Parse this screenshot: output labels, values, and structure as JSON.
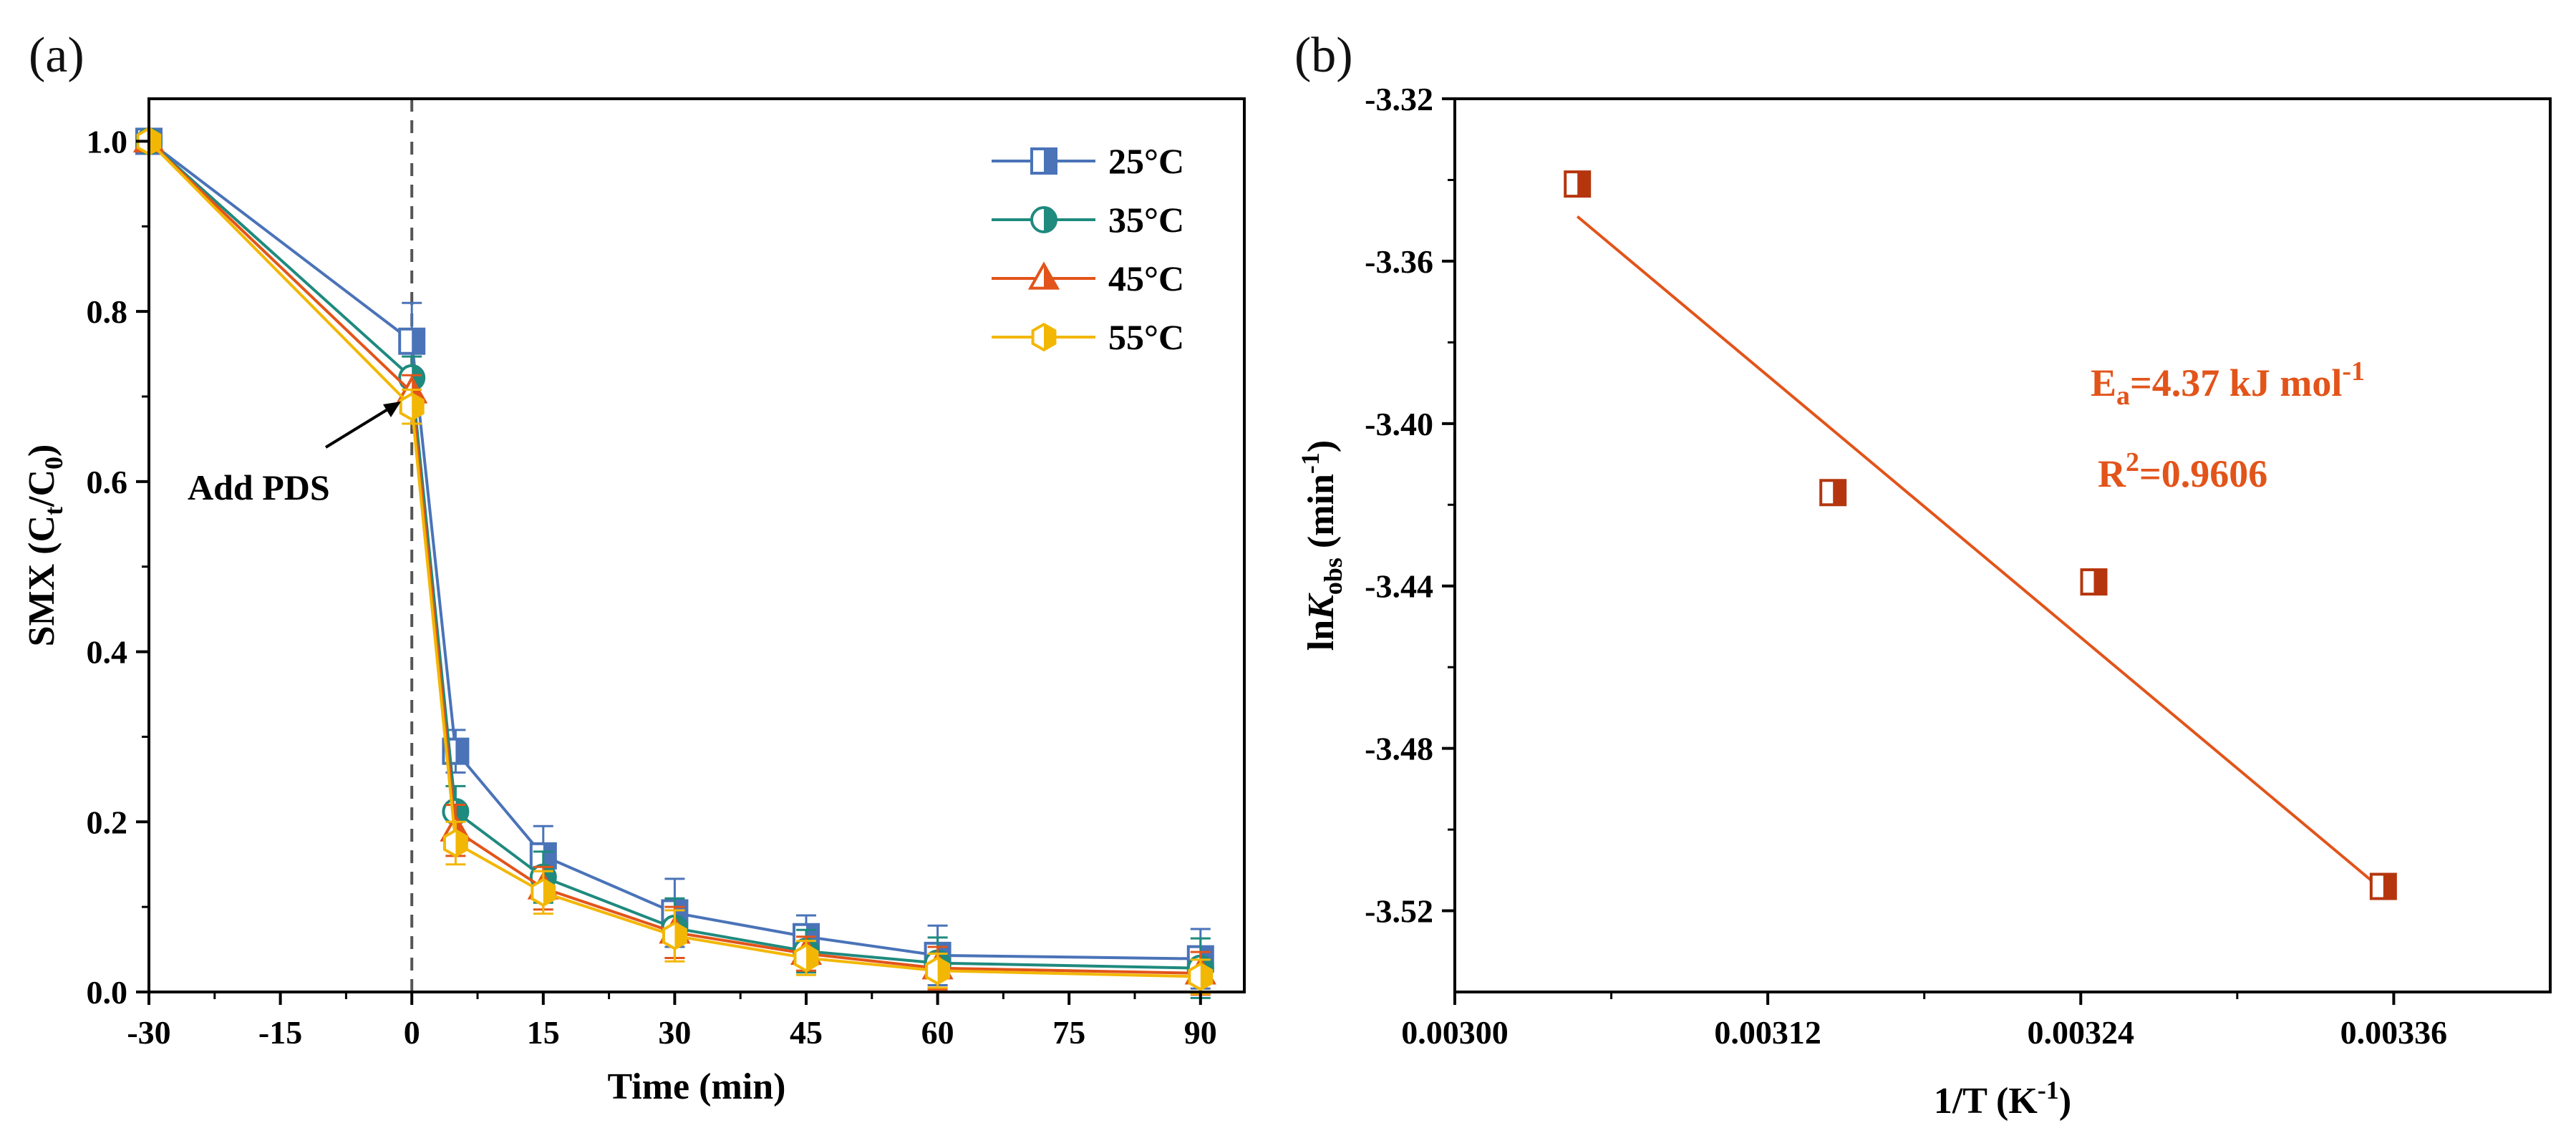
{
  "chart_data": [
    {
      "panel_label": "(a)",
      "type": "line",
      "xlabel": "Time (min)",
      "ylabel_parts": {
        "a": "SMX (C",
        "b": "t",
        "c": "/C",
        "d": "0",
        "e": ")"
      },
      "xlim": [
        -30,
        95
      ],
      "ylim": [
        0,
        1.05
      ],
      "xticks": [
        -30,
        -15,
        0,
        15,
        30,
        45,
        60,
        75,
        90
      ],
      "xtick_labels": [
        "-30",
        "-15",
        "0",
        "15",
        "30",
        "45",
        "60",
        "75",
        "90"
      ],
      "yticks": [
        0,
        0.2,
        0.4,
        0.6,
        0.8,
        1.0
      ],
      "ytick_labels": [
        "0.0",
        "0.2",
        "0.4",
        "0.6",
        "0.8",
        "1.0"
      ],
      "vline_x": 0,
      "annotation": "Add PDS",
      "annotation_target": [
        0,
        0.7
      ],
      "legend_position": "top-right",
      "x": [
        -30,
        0,
        5,
        15,
        30,
        45,
        60,
        90
      ],
      "series": [
        {
          "name": "25°C",
          "color": "#4a73b8",
          "marker": "square",
          "values": [
            1.0,
            0.765,
            0.283,
            0.16,
            0.093,
            0.065,
            0.043,
            0.039
          ],
          "errors": [
            0,
            0.045,
            0.025,
            0.035,
            0.04,
            0.025,
            0.035,
            0.035
          ]
        },
        {
          "name": "35°C",
          "color": "#1f8a7e",
          "marker": "circle",
          "values": [
            1.0,
            0.722,
            0.212,
            0.135,
            0.075,
            0.048,
            0.034,
            0.028
          ],
          "errors": [
            0,
            0.025,
            0.03,
            0.03,
            0.035,
            0.025,
            0.03,
            0.035
          ]
        },
        {
          "name": "45°C",
          "color": "#e2541a",
          "marker": "triangle",
          "values": [
            1.0,
            0.705,
            0.19,
            0.122,
            0.07,
            0.045,
            0.028,
            0.022
          ],
          "errors": [
            0,
            0.02,
            0.03,
            0.025,
            0.03,
            0.02,
            0.025,
            0.025
          ]
        },
        {
          "name": "55°C",
          "color": "#f2b705",
          "marker": "hexagon",
          "values": [
            1.0,
            0.688,
            0.175,
            0.117,
            0.066,
            0.04,
            0.025,
            0.018
          ],
          "errors": [
            0,
            0.02,
            0.025,
            0.025,
            0.03,
            0.02,
            0.02,
            0.02
          ]
        }
      ]
    },
    {
      "panel_label": "(b)",
      "type": "scatter",
      "xlabel_parts": {
        "a": "1/T (K",
        "b": "-1",
        "c": ")"
      },
      "ylabel_parts": {
        "a": "ln",
        "b": "K",
        "c": "obs",
        "d": " (min",
        "e": "-1",
        "f": ")"
      },
      "xlim": [
        0.003,
        0.00342
      ],
      "ylim": [
        -3.54,
        -3.32
      ],
      "xticks": [
        0.003,
        0.00312,
        0.00324,
        0.00336
      ],
      "xtick_labels": [
        "0.00300",
        "0.00312",
        "0.00324",
        "0.00336"
      ],
      "yticks": [
        -3.32,
        -3.36,
        -3.4,
        -3.44,
        -3.48,
        -3.52
      ],
      "ytick_labels": [
        "-3.32",
        "-3.36",
        "-3.40",
        "-3.44",
        "-3.48",
        "-3.52"
      ],
      "color": "#b5360e",
      "fit_color": "#e2541a",
      "points": {
        "x": [
          0.003047,
          0.003145,
          0.003245,
          0.003356
        ],
        "y": [
          -3.341,
          -3.417,
          -3.439,
          -3.514
        ]
      },
      "fit_line": {
        "x": [
          0.003047,
          0.003356
        ],
        "y": [
          -3.349,
          -3.515
        ]
      },
      "annotation_ea": {
        "a": "E",
        "b": "a",
        "c": "=4.37 kJ mol",
        "d": "-1"
      },
      "annotation_r2": {
        "a": "R",
        "b": "2",
        "c": "=0.9606"
      }
    }
  ]
}
